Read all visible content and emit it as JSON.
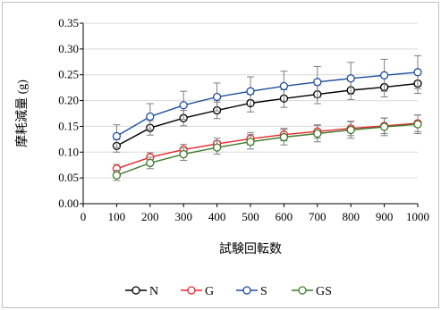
{
  "chart_data": {
    "type": "line",
    "xlabel": "試験回転数",
    "ylabel": "摩耗減量 (g)",
    "xlim": [
      0,
      1000
    ],
    "ylim": [
      0,
      0.35
    ],
    "xticks": [
      "0",
      "100",
      "200",
      "300",
      "400",
      "500",
      "600",
      "700",
      "800",
      "900",
      "1000"
    ],
    "yticks": [
      "0.00",
      "0.05",
      "0.10",
      "0.15",
      "0.20",
      "0.25",
      "0.30",
      "0.35"
    ],
    "grid": "horizontal",
    "legend_position": "bottom",
    "x": [
      100,
      200,
      300,
      400,
      500,
      600,
      700,
      800,
      900,
      1000
    ],
    "series": [
      {
        "name": "N",
        "color": "#000000",
        "values": [
          0.112,
          0.147,
          0.166,
          0.181,
          0.195,
          0.204,
          0.212,
          0.22,
          0.226,
          0.233
        ],
        "errors": [
          0.012,
          0.014,
          0.015,
          0.016,
          0.017,
          0.017,
          0.018,
          0.018,
          0.019,
          0.019
        ]
      },
      {
        "name": "G",
        "color": "#e8262b",
        "values": [
          0.068,
          0.09,
          0.105,
          0.116,
          0.126,
          0.134,
          0.14,
          0.146,
          0.151,
          0.156
        ],
        "errors": [
          0.008,
          0.009,
          0.01,
          0.011,
          0.012,
          0.012,
          0.013,
          0.014,
          0.015,
          0.016
        ]
      },
      {
        "name": "S",
        "color": "#1f4e9c",
        "values": [
          0.131,
          0.169,
          0.191,
          0.207,
          0.218,
          0.228,
          0.236,
          0.243,
          0.249,
          0.255
        ],
        "errors": [
          0.022,
          0.025,
          0.027,
          0.027,
          0.028,
          0.029,
          0.03,
          0.031,
          0.031,
          0.032
        ]
      },
      {
        "name": "GS",
        "color": "#3d7a2a",
        "values": [
          0.055,
          0.079,
          0.096,
          0.109,
          0.12,
          0.129,
          0.136,
          0.143,
          0.149,
          0.154
        ],
        "errors": [
          0.01,
          0.011,
          0.012,
          0.013,
          0.014,
          0.015,
          0.016,
          0.016,
          0.017,
          0.018
        ]
      }
    ]
  }
}
